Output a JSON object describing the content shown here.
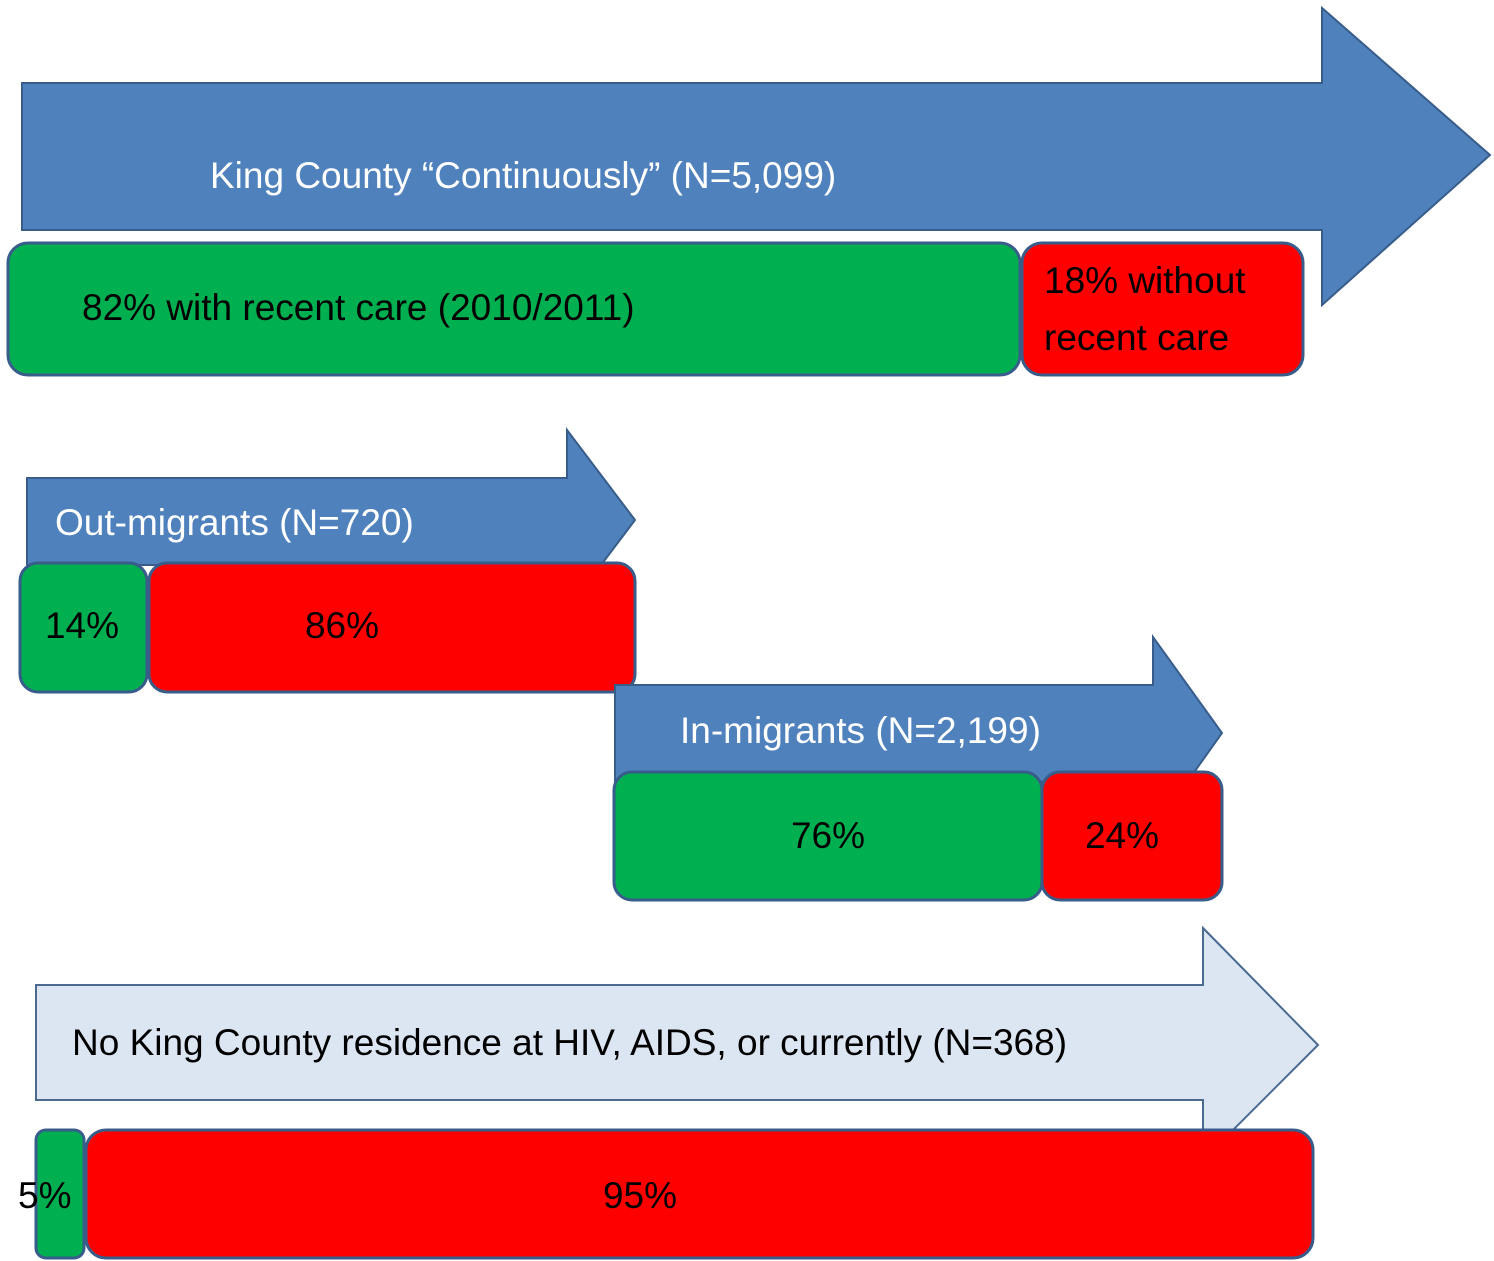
{
  "groups": [
    {
      "label": "King County “Continuously” (N=5,099)",
      "segments": [
        {
          "text": "82% with recent care (2010/2011)"
        },
        {
          "text": [
            "18% without",
            "recent care"
          ]
        }
      ]
    },
    {
      "label": "Out-migrants (N=720)",
      "segments": [
        {
          "text": "14%"
        },
        {
          "text": "86%"
        }
      ]
    },
    {
      "label": "In-migrants (N=2,199)",
      "segments": [
        {
          "text": "76%"
        },
        {
          "text": "24%"
        }
      ]
    },
    {
      "label": "No King County residence at HIV, AIDS, or currently (N=368)",
      "segments": [
        {
          "text": "5%"
        },
        {
          "text": "95%"
        }
      ]
    }
  ]
}
